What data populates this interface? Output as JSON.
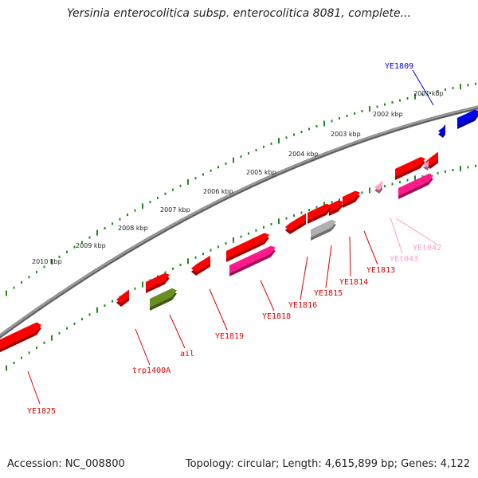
{
  "title": "Yersinia enterocolitica subsp. enterocolitica 8081, complete...",
  "footer": {
    "accession": "Accession: NC_008800",
    "summary": "Topology: circular; Length: 4,615,899 bp; Genes: 4,122"
  },
  "colors": {
    "backbone": "#7a7a7a",
    "tick": "#1f8a1f",
    "cds": "#ff0000",
    "rrna_like": "#ff1a8c",
    "pseudo": "#b0b0b0",
    "misc": "#6b8e23",
    "blue": "#0000ee",
    "trna": "#ff9ec8"
  },
  "kbp_labels": [
    "2010 kbp",
    "2009 kbp",
    "2008 kbp",
    "2007 kbp",
    "2006 kbp",
    "2005 kbp",
    "2004 kbp",
    "2003 kbp",
    "2002 kbp",
    "2001 kbp"
  ],
  "gene_labels": [
    {
      "name": "YE1809",
      "color": "#0000ee"
    },
    {
      "name": "YEt042",
      "color": "#ff9ec8"
    },
    {
      "name": "YEt043",
      "color": "#ff9ec8"
    },
    {
      "name": "YE1813",
      "color": "#dd0000"
    },
    {
      "name": "YE1814",
      "color": "#dd0000"
    },
    {
      "name": "YE1815",
      "color": "#dd0000"
    },
    {
      "name": "YE1816",
      "color": "#dd0000"
    },
    {
      "name": "YE1818",
      "color": "#dd0000"
    },
    {
      "name": "YE1819",
      "color": "#dd0000"
    },
    {
      "name": "ail",
      "color": "#dd0000"
    },
    {
      "name": "trp1400A",
      "color": "#dd0000"
    },
    {
      "name": "YE1825",
      "color": "#dd0000"
    }
  ]
}
